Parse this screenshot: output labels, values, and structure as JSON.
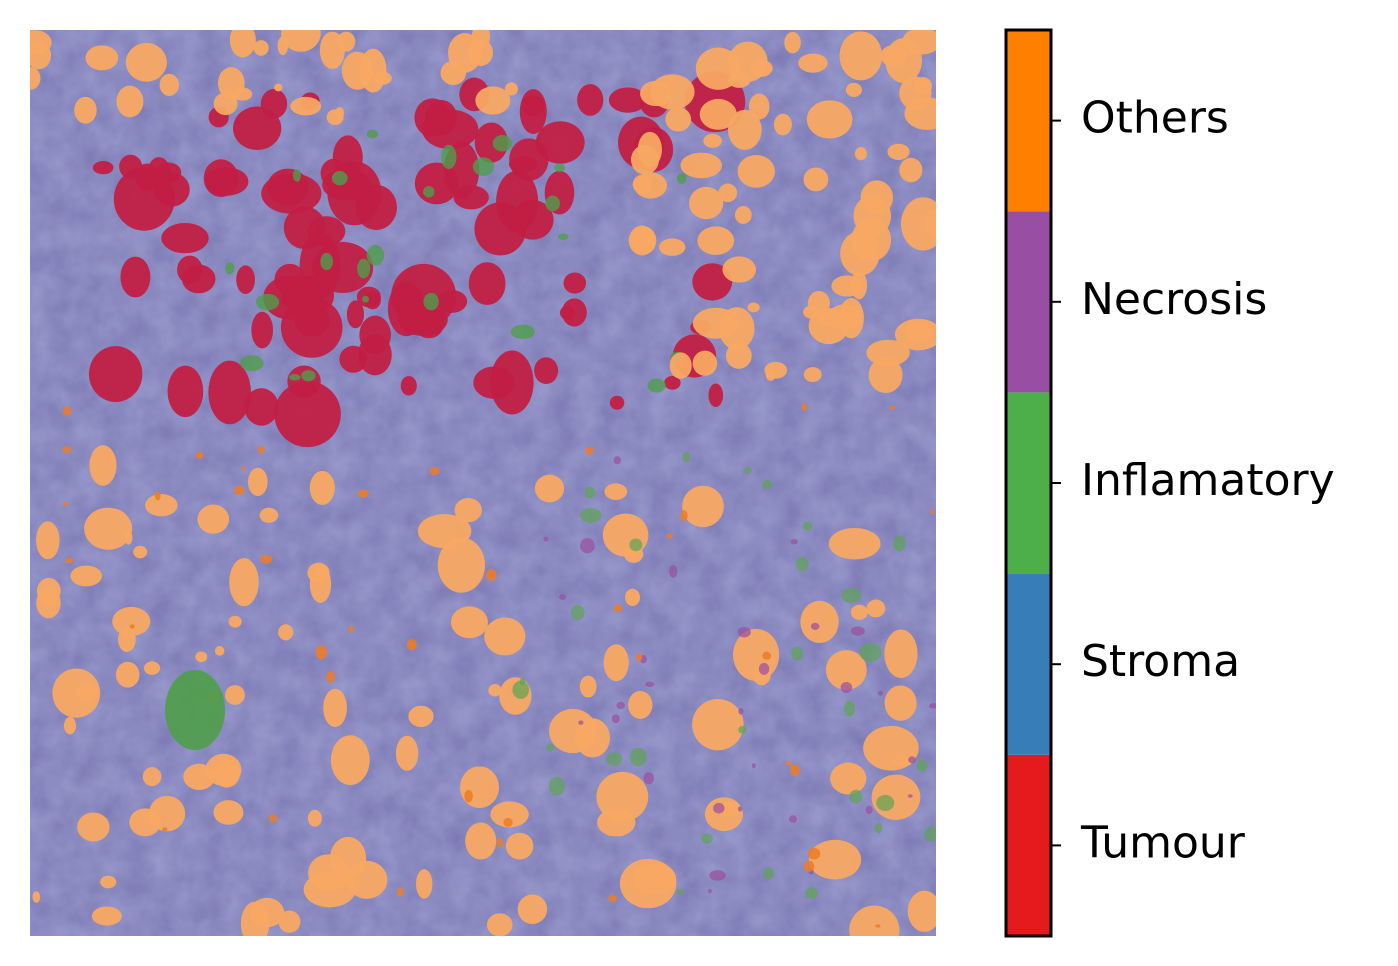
{
  "chart_data": {
    "type": "segmentation-map",
    "categories": [
      "Tumour",
      "Stroma",
      "Inflamatory",
      "Necrosis",
      "Others"
    ],
    "colors": [
      "#e41a1c",
      "#377eb8",
      "#4daf4a",
      "#984ea3",
      "#ff7f00"
    ]
  }
}
